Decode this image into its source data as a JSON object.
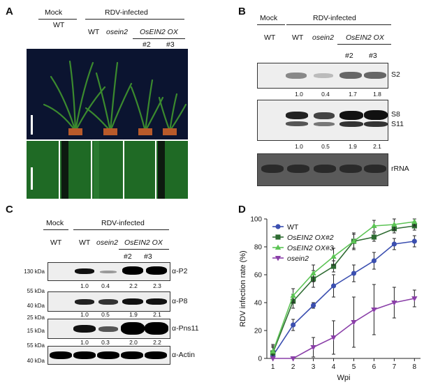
{
  "panelA": {
    "letter": "A",
    "mock": "Mock",
    "rdv": "RDV-infected",
    "wt_mock": "WT",
    "wt": "WT",
    "osein2": "osein2",
    "ox": "OsEIN2 OX",
    "n2": "#2",
    "n3": "#3"
  },
  "panelB": {
    "letter": "B",
    "mock": "Mock",
    "rdv": "RDV-infected",
    "wt_mock": "WT",
    "wt": "WT",
    "osein2": "osein2",
    "ox": "OsEIN2 OX",
    "n2": "#2",
    "n3": "#3",
    "s2": "S2",
    "s8": "S8",
    "s11": "S11",
    "rrna": "rRNA",
    "q1": [
      "1.0",
      "0.4",
      "1.7",
      "1.8"
    ],
    "q2": [
      "1.0",
      "0.5",
      "1.9",
      "2.1"
    ]
  },
  "panelC": {
    "letter": "C",
    "mock": "Mock",
    "rdv": "RDV-infected",
    "wt_mock": "WT",
    "wt": "WT",
    "osein2": "osein2",
    "ox": "OsEIN2 OX",
    "n2": "#2",
    "n3": "#3",
    "k130": "130 kDa",
    "k55a": "55 kDa",
    "k40a": "40 kDa",
    "k25": "25 kDa",
    "k15": "15 kDa",
    "k55b": "55 kDa",
    "k40b": "40 kDa",
    "p2": "α-P2",
    "p8": "α-P8",
    "pns11": "α-Pns11",
    "actin": "α-Actin",
    "q1": [
      "1.0",
      "0.4",
      "2.2",
      "2.3"
    ],
    "q2": [
      "1.0",
      "0.5",
      "1.9",
      "2.1"
    ],
    "q3": [
      "1.0",
      "0.3",
      "2.0",
      "2.2"
    ]
  },
  "panelD": {
    "letter": "D"
  },
  "chart_data": {
    "type": "line",
    "xlabel": "Wpi",
    "ylabel": "RDV infection rate (%)",
    "x": [
      1,
      2,
      3,
      4,
      5,
      6,
      7,
      8
    ],
    "xlim": [
      0.7,
      8.3
    ],
    "ylim": [
      0,
      100
    ],
    "yticks": [
      0,
      20,
      40,
      60,
      80,
      100
    ],
    "legend_position": "top-left",
    "series": [
      {
        "name": "WT",
        "color": "#3b4fb0",
        "marker": "circle",
        "values": [
          2,
          24,
          38,
          52,
          61,
          70,
          82,
          84
        ],
        "err": [
          6,
          4,
          2,
          8,
          6,
          6,
          4,
          4
        ]
      },
      {
        "name": "OsEIN2 OX#2",
        "color": "#2e6b32",
        "marker": "square",
        "values": [
          4,
          41,
          57,
          66,
          84,
          87,
          93,
          95
        ],
        "err": [
          5,
          5,
          6,
          4,
          5,
          3,
          3,
          3
        ]
      },
      {
        "name": "OsEIN2 OX#3",
        "color": "#5cc455",
        "marker": "triangle-up",
        "values": [
          5,
          45,
          61,
          73,
          84,
          95,
          96,
          98
        ],
        "err": [
          5,
          5,
          6,
          6,
          6,
          4,
          4,
          3
        ]
      },
      {
        "name": "osein2",
        "color": "#8a3fa8",
        "marker": "triangle-down",
        "values": [
          0,
          0,
          8,
          15,
          26,
          35,
          40,
          43
        ],
        "err": [
          0,
          0,
          7,
          12,
          18,
          18,
          11,
          6
        ]
      }
    ]
  }
}
